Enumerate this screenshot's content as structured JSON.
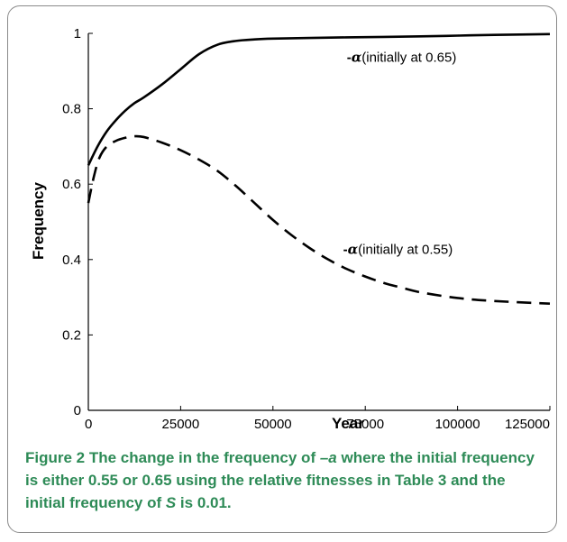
{
  "chart_data": {
    "type": "line",
    "xlabel": "Year",
    "ylabel": "Frequency",
    "xlim": [
      0,
      125000
    ],
    "ylim": [
      0,
      1
    ],
    "x_ticks": [
      "0",
      "25000",
      "50000",
      "75000",
      "100000",
      "125000"
    ],
    "y_ticks": [
      "0",
      "0.2",
      "0.4",
      "0.6",
      "0.8",
      "1"
    ],
    "grid": false,
    "series": [
      {
        "name": "-α(initially at 0.65)",
        "style": "solid",
        "points": [
          [
            0,
            0.65
          ],
          [
            2500,
            0.7
          ],
          [
            5000,
            0.74
          ],
          [
            7500,
            0.77
          ],
          [
            10000,
            0.795
          ],
          [
            12500,
            0.815
          ],
          [
            15000,
            0.83
          ],
          [
            20000,
            0.865
          ],
          [
            25000,
            0.905
          ],
          [
            30000,
            0.945
          ],
          [
            35000,
            0.97
          ],
          [
            40000,
            0.98
          ],
          [
            45000,
            0.984
          ],
          [
            50000,
            0.986
          ],
          [
            60000,
            0.988
          ],
          [
            75000,
            0.99
          ],
          [
            90000,
            0.992
          ],
          [
            100000,
            0.994
          ],
          [
            110000,
            0.996
          ],
          [
            125000,
            0.998
          ]
        ]
      },
      {
        "name": "-α(initially at 0.55)",
        "style": "dashed",
        "points": [
          [
            0,
            0.55
          ],
          [
            1500,
            0.62
          ],
          [
            3000,
            0.67
          ],
          [
            5000,
            0.7
          ],
          [
            7500,
            0.715
          ],
          [
            10000,
            0.723
          ],
          [
            12500,
            0.727
          ],
          [
            15000,
            0.725
          ],
          [
            20000,
            0.71
          ],
          [
            25000,
            0.69
          ],
          [
            30000,
            0.665
          ],
          [
            35000,
            0.635
          ],
          [
            40000,
            0.595
          ],
          [
            45000,
            0.55
          ],
          [
            50000,
            0.505
          ],
          [
            55000,
            0.465
          ],
          [
            60000,
            0.43
          ],
          [
            65000,
            0.4
          ],
          [
            70000,
            0.375
          ],
          [
            75000,
            0.355
          ],
          [
            80000,
            0.338
          ],
          [
            85000,
            0.325
          ],
          [
            90000,
            0.313
          ],
          [
            100000,
            0.298
          ],
          [
            110000,
            0.29
          ],
          [
            125000,
            0.283
          ]
        ]
      }
    ],
    "annotations": [
      {
        "minus": "-",
        "alpha": "α",
        "text": "(initially at 0.65)",
        "x": 70000,
        "y": 0.925
      },
      {
        "minus": "-",
        "alpha": "α",
        "text": "(initially at 0.55)",
        "x": 69000,
        "y": 0.415
      }
    ]
  },
  "caption": {
    "lead": "Figure 2",
    "part1": " The change in the frequency of ",
    "ital1": "–a",
    "part2": " where the initial frequency is either 0.55 or 0.65 using the relative fitnesses in Table 3 and the initial frequency of ",
    "ital2": "S",
    "part3": " is 0.01."
  }
}
